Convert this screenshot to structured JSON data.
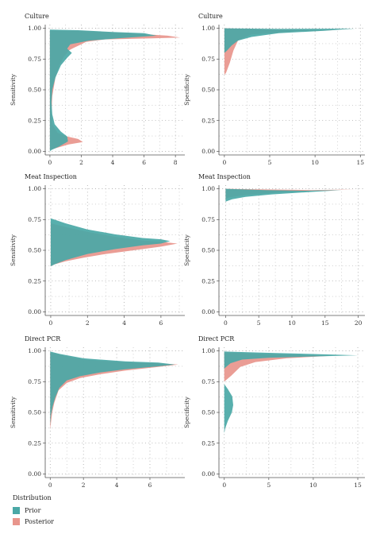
{
  "chart_data": [
    {
      "type": "area",
      "title": "Culture",
      "ylabel": "Sensitivity",
      "xlim": [
        -0.3,
        8.6
      ],
      "ylim": [
        -0.03,
        1.03
      ],
      "xticks": [
        "0",
        "2",
        "4",
        "6",
        "8"
      ],
      "yticks": [
        "0.00",
        "0.25",
        "0.50",
        "0.75",
        "1.00"
      ],
      "series": [
        {
          "name": "Posterior",
          "color": "#e8958c",
          "points": [
            [
              0.0,
              0.98
            ],
            [
              2.0,
              0.98
            ],
            [
              5.0,
              0.96
            ],
            [
              7.5,
              0.94
            ],
            [
              8.3,
              0.925
            ],
            [
              6.5,
              0.918
            ],
            [
              3.5,
              0.91
            ],
            [
              2.3,
              0.89
            ],
            [
              2.0,
              0.87
            ],
            [
              1.5,
              0.84
            ],
            [
              1.2,
              0.82
            ],
            [
              1.1,
              0.8
            ],
            [
              0.9,
              0.77
            ],
            [
              0.6,
              0.7
            ],
            [
              0.35,
              0.6
            ],
            [
              0.15,
              0.45
            ],
            [
              0.1,
              0.3
            ],
            [
              0.15,
              0.22
            ],
            [
              0.5,
              0.15
            ],
            [
              1.1,
              0.12
            ],
            [
              1.8,
              0.1
            ],
            [
              2.1,
              0.075
            ],
            [
              1.2,
              0.055
            ],
            [
              0.5,
              0.03
            ],
            [
              0.0,
              0.01
            ]
          ]
        },
        {
          "name": "Prior",
          "color": "#4aa8a6",
          "points": [
            [
              0.0,
              0.99
            ],
            [
              1.8,
              0.985
            ],
            [
              4.0,
              0.97
            ],
            [
              6.0,
              0.96
            ],
            [
              6.8,
              0.94
            ],
            [
              4.5,
              0.92
            ],
            [
              2.5,
              0.9
            ],
            [
              1.3,
              0.87
            ],
            [
              1.1,
              0.835
            ],
            [
              1.4,
              0.8
            ],
            [
              1.1,
              0.76
            ],
            [
              0.7,
              0.7
            ],
            [
              0.35,
              0.6
            ],
            [
              0.15,
              0.5
            ],
            [
              0.1,
              0.4
            ],
            [
              0.15,
              0.3
            ],
            [
              0.3,
              0.22
            ],
            [
              0.7,
              0.16
            ],
            [
              1.1,
              0.12
            ],
            [
              1.15,
              0.08
            ],
            [
              0.6,
              0.04
            ],
            [
              0.1,
              0.01
            ],
            [
              0.0,
              0.0
            ]
          ]
        }
      ]
    },
    {
      "type": "area",
      "title": "Culture",
      "ylabel": "Specificity",
      "xlim": [
        -0.6,
        15.5
      ],
      "ylim": [
        -0.03,
        1.03
      ],
      "xticks": [
        "0",
        "5",
        "10",
        "15"
      ],
      "yticks": [
        "0.00",
        "0.25",
        "0.50",
        "0.75",
        "1.00"
      ],
      "series": [
        {
          "name": "Posterior",
          "color": "#e8958c",
          "points": [
            [
              0.0,
              1.0
            ],
            [
              5.0,
              0.99
            ],
            [
              12.0,
              0.985
            ],
            [
              8.0,
              0.975
            ],
            [
              3.0,
              0.95
            ],
            [
              1.5,
              0.9
            ],
            [
              1.0,
              0.82
            ],
            [
              0.6,
              0.72
            ],
            [
              0.2,
              0.64
            ],
            [
              0.0,
              0.62
            ]
          ]
        },
        {
          "name": "Prior",
          "color": "#4aa8a6",
          "points": [
            [
              0.0,
              1.0
            ],
            [
              6.0,
              0.995
            ],
            [
              14.4,
              0.998
            ],
            [
              11.0,
              0.98
            ],
            [
              6.0,
              0.96
            ],
            [
              3.0,
              0.93
            ],
            [
              1.5,
              0.9
            ],
            [
              0.8,
              0.86
            ],
            [
              0.3,
              0.82
            ],
            [
              0.0,
              0.8
            ]
          ]
        }
      ]
    },
    {
      "type": "area",
      "title": "Meat Inspection",
      "ylabel": "Sensitivity",
      "xlim": [
        -0.3,
        7.3
      ],
      "ylim": [
        -0.03,
        1.03
      ],
      "xticks": [
        "0",
        "2",
        "4",
        "6"
      ],
      "yticks": [
        "0.00",
        "0.25",
        "0.50",
        "0.75",
        "1.00"
      ],
      "series": [
        {
          "name": "Posterior",
          "color": "#e8958c",
          "points": [
            [
              0.0,
              0.72
            ],
            [
              0.8,
              0.69
            ],
            [
              2.0,
              0.65
            ],
            [
              3.5,
              0.61
            ],
            [
              5.0,
              0.58
            ],
            [
              6.0,
              0.57
            ],
            [
              6.9,
              0.555
            ],
            [
              6.0,
              0.53
            ],
            [
              4.5,
              0.5
            ],
            [
              3.0,
              0.47
            ],
            [
              1.8,
              0.44
            ],
            [
              0.8,
              0.41
            ],
            [
              0.2,
              0.385
            ],
            [
              0.0,
              0.37
            ]
          ]
        },
        {
          "name": "Prior",
          "color": "#4aa8a6",
          "points": [
            [
              0.0,
              0.76
            ],
            [
              0.8,
              0.72
            ],
            [
              2.0,
              0.67
            ],
            [
              3.5,
              0.63
            ],
            [
              5.0,
              0.6
            ],
            [
              6.0,
              0.59
            ],
            [
              6.5,
              0.575
            ],
            [
              6.0,
              0.555
            ],
            [
              5.0,
              0.54
            ],
            [
              3.5,
              0.51
            ],
            [
              2.0,
              0.47
            ],
            [
              0.8,
              0.42
            ],
            [
              0.2,
              0.385
            ],
            [
              0.0,
              0.37
            ]
          ]
        }
      ]
    },
    {
      "type": "area",
      "title": "Meat Inspection",
      "ylabel": "Specificity",
      "xlim": [
        -1.0,
        21.0
      ],
      "ylim": [
        -0.03,
        1.03
      ],
      "xticks": [
        "0",
        "5",
        "10",
        "15",
        "20"
      ],
      "yticks": [
        "0.00",
        "0.25",
        "0.50",
        "0.75",
        "1.00"
      ],
      "series": [
        {
          "name": "Posterior",
          "color": "#e8958c",
          "points": [
            [
              0.0,
              1.0
            ],
            [
              6.0,
              0.995
            ],
            [
              13.0,
              0.99
            ],
            [
              19.5,
              0.995
            ],
            [
              14.0,
              0.985
            ],
            [
              8.0,
              0.97
            ],
            [
              3.0,
              0.95
            ],
            [
              0.5,
              0.93
            ],
            [
              0.0,
              0.92
            ]
          ]
        },
        {
          "name": "Prior",
          "color": "#4aa8a6",
          "points": [
            [
              0.0,
              1.0
            ],
            [
              6.0,
              0.99
            ],
            [
              12.0,
              0.985
            ],
            [
              17.5,
              0.99
            ],
            [
              13.0,
              0.975
            ],
            [
              7.0,
              0.955
            ],
            [
              3.0,
              0.935
            ],
            [
              1.0,
              0.915
            ],
            [
              0.2,
              0.9
            ],
            [
              0.0,
              0.895
            ]
          ]
        }
      ]
    },
    {
      "type": "area",
      "title": "Direct PCR",
      "ylabel": "Sensitivity",
      "xlim": [
        -0.3,
        8.1
      ],
      "ylim": [
        -0.03,
        1.03
      ],
      "xticks": [
        "0",
        "2",
        "4",
        "6"
      ],
      "yticks": [
        "0.00",
        "0.25",
        "0.50",
        "0.75",
        "1.00"
      ],
      "series": [
        {
          "name": "Posterior",
          "color": "#e8958c",
          "points": [
            [
              0.0,
              0.99
            ],
            [
              0.6,
              0.97
            ],
            [
              2.0,
              0.93
            ],
            [
              4.5,
              0.91
            ],
            [
              6.5,
              0.9
            ],
            [
              7.7,
              0.89
            ],
            [
              6.5,
              0.87
            ],
            [
              4.5,
              0.84
            ],
            [
              3.0,
              0.81
            ],
            [
              1.8,
              0.78
            ],
            [
              1.0,
              0.74
            ],
            [
              0.5,
              0.68
            ],
            [
              0.25,
              0.58
            ],
            [
              0.12,
              0.5
            ],
            [
              0.05,
              0.42
            ],
            [
              0.0,
              0.36
            ]
          ]
        },
        {
          "name": "Prior",
          "color": "#4aa8a6",
          "points": [
            [
              0.0,
              0.995
            ],
            [
              0.6,
              0.975
            ],
            [
              2.0,
              0.94
            ],
            [
              4.5,
              0.915
            ],
            [
              6.5,
              0.905
            ],
            [
              7.5,
              0.89
            ],
            [
              6.5,
              0.875
            ],
            [
              4.5,
              0.85
            ],
            [
              3.0,
              0.825
            ],
            [
              1.8,
              0.795
            ],
            [
              1.0,
              0.76
            ],
            [
              0.55,
              0.7
            ],
            [
              0.3,
              0.62
            ],
            [
              0.15,
              0.55
            ],
            [
              0.05,
              0.48
            ],
            [
              0.0,
              0.4
            ]
          ]
        }
      ]
    },
    {
      "type": "area",
      "title": "Direct PCR",
      "ylabel": "Specificity",
      "xlim": [
        -0.6,
        15.8
      ],
      "ylim": [
        -0.03,
        1.03
      ],
      "xticks": [
        "0",
        "5",
        "10",
        "15"
      ],
      "yticks": [
        "0.00",
        "0.25",
        "0.50",
        "0.75",
        "1.00"
      ],
      "series": [
        {
          "name": "Posterior",
          "color": "#e8958c",
          "points": [
            [
              0.0,
              0.99
            ],
            [
              5.0,
              0.975
            ],
            [
              12.0,
              0.96
            ],
            [
              7.0,
              0.94
            ],
            [
              3.5,
              0.91
            ],
            [
              1.8,
              0.87
            ],
            [
              0.8,
              0.8
            ],
            [
              0.0,
              0.75
            ]
          ]
        },
        {
          "name": "Prior",
          "color": "#4aa8a6",
          "points": [
            [
              0.0,
              0.995
            ],
            [
              5.0,
              0.985
            ],
            [
              10.0,
              0.975
            ],
            [
              15.0,
              0.965
            ],
            [
              10.0,
              0.955
            ],
            [
              5.0,
              0.945
            ],
            [
              2.0,
              0.93
            ],
            [
              0.7,
              0.9
            ],
            [
              0.05,
              0.86
            ],
            [
              0.0,
              0.85
            ],
            [
              0.0,
              0.73
            ],
            [
              0.4,
              0.69
            ],
            [
              0.9,
              0.63
            ],
            [
              1.0,
              0.56
            ],
            [
              0.85,
              0.5
            ],
            [
              0.4,
              0.43
            ],
            [
              0.1,
              0.37
            ],
            [
              0.0,
              0.33
            ]
          ]
        }
      ]
    }
  ],
  "legend": {
    "title": "Distribution",
    "items": [
      {
        "label": "Prior",
        "color": "#4aa8a6"
      },
      {
        "label": "Posterior",
        "color": "#e8958c"
      }
    ]
  }
}
